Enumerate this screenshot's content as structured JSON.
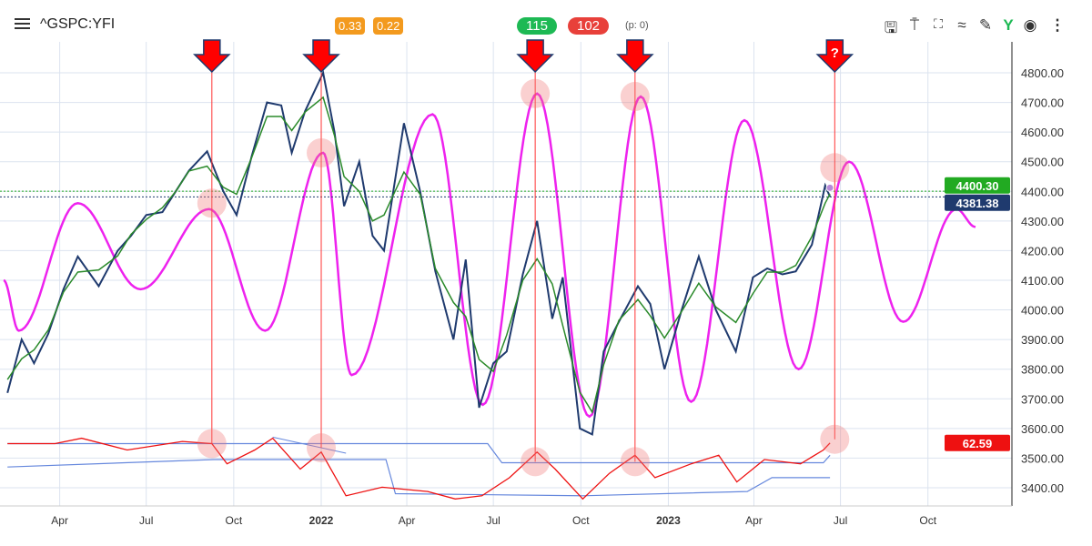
{
  "header": {
    "symbol": "^GSPC:YFI",
    "badges": [
      "0.33",
      "0.22"
    ],
    "counts": {
      "up": "115",
      "down": "102"
    },
    "p_info": "(p: 0)",
    "toolbar": [
      "save-icon",
      "pin-icon",
      "fullscreen-icon",
      "indicator-icon",
      "draw-icon",
      "fork-icon",
      "eye-icon",
      "more-icon"
    ]
  },
  "colors": {
    "price": "#1f3a6e",
    "smooth": "#2a8a2a",
    "cycle": "#ee22ee",
    "oscillator": "#ee1111",
    "bands": "#6688dd",
    "arrow": "#ff0000",
    "last_green": "#22aa22",
    "last_navy": "#1f3a6e"
  },
  "chart_data": {
    "type": "line",
    "y_axis": {
      "range": [
        3350,
        4850
      ],
      "ticks": [
        "4800.00",
        "4700.00",
        "4600.00",
        "4500.00",
        "4400.00",
        "4300.00",
        "4200.00",
        "4100.00",
        "4000.00",
        "3900.00",
        "3800.00",
        "3700.00",
        "3600.00",
        "3500.00",
        "3400.00"
      ],
      "position": "right"
    },
    "x_axis": {
      "ticks": [
        {
          "label": "Apr",
          "date": "2021-04-01"
        },
        {
          "label": "Jul",
          "date": "2021-07-01"
        },
        {
          "label": "Oct",
          "date": "2021-10-01"
        },
        {
          "label": "2022",
          "date": "2022-01-01",
          "bold": true
        },
        {
          "label": "Apr",
          "date": "2022-04-01"
        },
        {
          "label": "Jul",
          "date": "2022-07-01"
        },
        {
          "label": "Oct",
          "date": "2022-10-01"
        },
        {
          "label": "2023",
          "date": "2023-01-01",
          "bold": true
        },
        {
          "label": "Apr",
          "date": "2023-04-01"
        },
        {
          "label": "Jul",
          "date": "2023-07-01"
        },
        {
          "label": "Oct",
          "date": "2023-10-01"
        }
      ]
    },
    "grid": true,
    "price": [
      [
        "2021-02-05",
        3720
      ],
      [
        "2021-02-20",
        3900
      ],
      [
        "2021-03-05",
        3820
      ],
      [
        "2021-03-20",
        3920
      ],
      [
        "2021-04-05",
        4070
      ],
      [
        "2021-04-20",
        4180
      ],
      [
        "2021-05-12",
        4080
      ],
      [
        "2021-06-01",
        4200
      ],
      [
        "2021-06-15",
        4250
      ],
      [
        "2021-07-01",
        4320
      ],
      [
        "2021-07-18",
        4330
      ],
      [
        "2021-08-01",
        4400
      ],
      [
        "2021-08-15",
        4470
      ],
      [
        "2021-09-03",
        4535
      ],
      [
        "2021-09-20",
        4400
      ],
      [
        "2021-10-04",
        4320
      ],
      [
        "2021-10-20",
        4520
      ],
      [
        "2021-11-05",
        4700
      ],
      [
        "2021-11-20",
        4690
      ],
      [
        "2021-12-01",
        4530
      ],
      [
        "2021-12-15",
        4670
      ],
      [
        "2022-01-03",
        4800
      ],
      [
        "2022-01-15",
        4600
      ],
      [
        "2022-01-25",
        4350
      ],
      [
        "2022-02-10",
        4500
      ],
      [
        "2022-02-24",
        4250
      ],
      [
        "2022-03-08",
        4200
      ],
      [
        "2022-03-29",
        4630
      ],
      [
        "2022-04-15",
        4400
      ],
      [
        "2022-05-01",
        4130
      ],
      [
        "2022-05-20",
        3900
      ],
      [
        "2022-06-02",
        4170
      ],
      [
        "2022-06-16",
        3670
      ],
      [
        "2022-07-01",
        3820
      ],
      [
        "2022-07-15",
        3860
      ],
      [
        "2022-08-01",
        4120
      ],
      [
        "2022-08-16",
        4300
      ],
      [
        "2022-09-01",
        3970
      ],
      [
        "2022-09-12",
        4110
      ],
      [
        "2022-09-30",
        3600
      ],
      [
        "2022-10-13",
        3580
      ],
      [
        "2022-10-25",
        3860
      ],
      [
        "2022-11-10",
        3960
      ],
      [
        "2022-11-30",
        4080
      ],
      [
        "2022-12-13",
        4020
      ],
      [
        "2022-12-28",
        3800
      ],
      [
        "2023-01-15",
        4000
      ],
      [
        "2023-02-02",
        4180
      ],
      [
        "2023-02-20",
        4000
      ],
      [
        "2023-03-13",
        3860
      ],
      [
        "2023-03-31",
        4110
      ],
      [
        "2023-04-15",
        4140
      ],
      [
        "2023-05-01",
        4120
      ],
      [
        "2023-05-15",
        4130
      ],
      [
        "2023-06-01",
        4220
      ],
      [
        "2023-06-15",
        4420
      ],
      [
        "2023-06-20",
        4381.38
      ]
    ],
    "cycle_extrema": [
      [
        "2021-02-01",
        4100
      ],
      [
        "2021-02-17",
        3930
      ],
      [
        "2021-04-20",
        4360
      ],
      [
        "2021-06-25",
        4070
      ],
      [
        "2021-09-05",
        4340
      ],
      [
        "2021-11-03",
        3930
      ],
      [
        "2022-01-03",
        4530
      ],
      [
        "2022-02-02",
        3780
      ],
      [
        "2022-04-28",
        4660
      ],
      [
        "2022-06-20",
        3680
      ],
      [
        "2022-08-16",
        4730
      ],
      [
        "2022-10-10",
        3640
      ],
      [
        "2022-12-03",
        4720
      ],
      [
        "2023-01-25",
        3690
      ],
      [
        "2023-03-22",
        4640
      ],
      [
        "2023-05-18",
        3800
      ],
      [
        "2023-07-10",
        4500
      ],
      [
        "2023-09-05",
        3960
      ],
      [
        "2023-10-31",
        4340
      ],
      [
        "2023-11-20",
        4280
      ]
    ],
    "oscillator": [
      [
        "2021-02-05",
        62
      ],
      [
        "2021-03-27",
        62
      ],
      [
        "2021-04-24",
        67
      ],
      [
        "2021-06-11",
        56
      ],
      [
        "2021-08-08",
        64
      ],
      [
        "2021-09-08",
        62
      ],
      [
        "2021-09-24",
        43
      ],
      [
        "2021-10-23",
        56
      ],
      [
        "2021-11-11",
        67
      ],
      [
        "2021-12-10",
        38
      ],
      [
        "2022-01-01",
        54
      ],
      [
        "2022-01-27",
        13
      ],
      [
        "2022-03-06",
        21
      ],
      [
        "2022-04-23",
        17
      ],
      [
        "2022-05-22",
        10
      ],
      [
        "2022-06-19",
        13
      ],
      [
        "2022-07-18",
        30
      ],
      [
        "2022-08-16",
        54
      ],
      [
        "2022-09-04",
        38
      ],
      [
        "2022-10-03",
        10
      ],
      [
        "2022-10-31",
        34
      ],
      [
        "2022-11-27",
        51
      ],
      [
        "2022-12-18",
        30
      ],
      [
        "2023-01-25",
        43
      ],
      [
        "2023-02-23",
        51
      ],
      [
        "2023-03-14",
        26
      ],
      [
        "2023-04-12",
        47
      ],
      [
        "2023-05-20",
        43
      ],
      [
        "2023-06-13",
        56
      ],
      [
        "2023-06-20",
        62.59
      ]
    ],
    "osc_upper_band": [
      [
        "2021-02-05",
        62
      ],
      [
        "2022-06-25",
        62
      ],
      [
        "2022-07-10",
        44
      ],
      [
        "2023-06-13",
        44
      ],
      [
        "2023-06-20",
        51
      ]
    ],
    "osc_lower_band": [
      [
        "2021-02-05",
        40
      ],
      [
        "2021-09-10",
        47
      ],
      [
        "2022-03-10",
        47
      ],
      [
        "2022-03-20",
        15
      ],
      [
        "2022-10-03",
        13
      ],
      [
        "2023-03-25",
        17
      ],
      [
        "2023-04-20",
        30
      ],
      [
        "2023-06-20",
        30
      ]
    ],
    "osc_trendline": [
      [
        "2021-11-11",
        68
      ],
      [
        "2022-01-27",
        53
      ]
    ],
    "last_values": {
      "green": "4400.30",
      "navy": "4381.38",
      "oscillator": "62.59"
    },
    "markers": [
      {
        "date": "2021-09-08",
        "price_circle": 4360,
        "osc_circle": 62
      },
      {
        "date": "2022-01-01",
        "price_circle": 4530,
        "osc_circle": 58
      },
      {
        "date": "2022-08-14",
        "price_circle": 4730,
        "osc_circle": 45
      },
      {
        "date": "2022-11-27",
        "price_circle": 4720,
        "osc_circle": 45
      },
      {
        "date": "2023-06-25",
        "price_circle": 4480,
        "osc_circle": 66,
        "label": "?"
      }
    ]
  }
}
